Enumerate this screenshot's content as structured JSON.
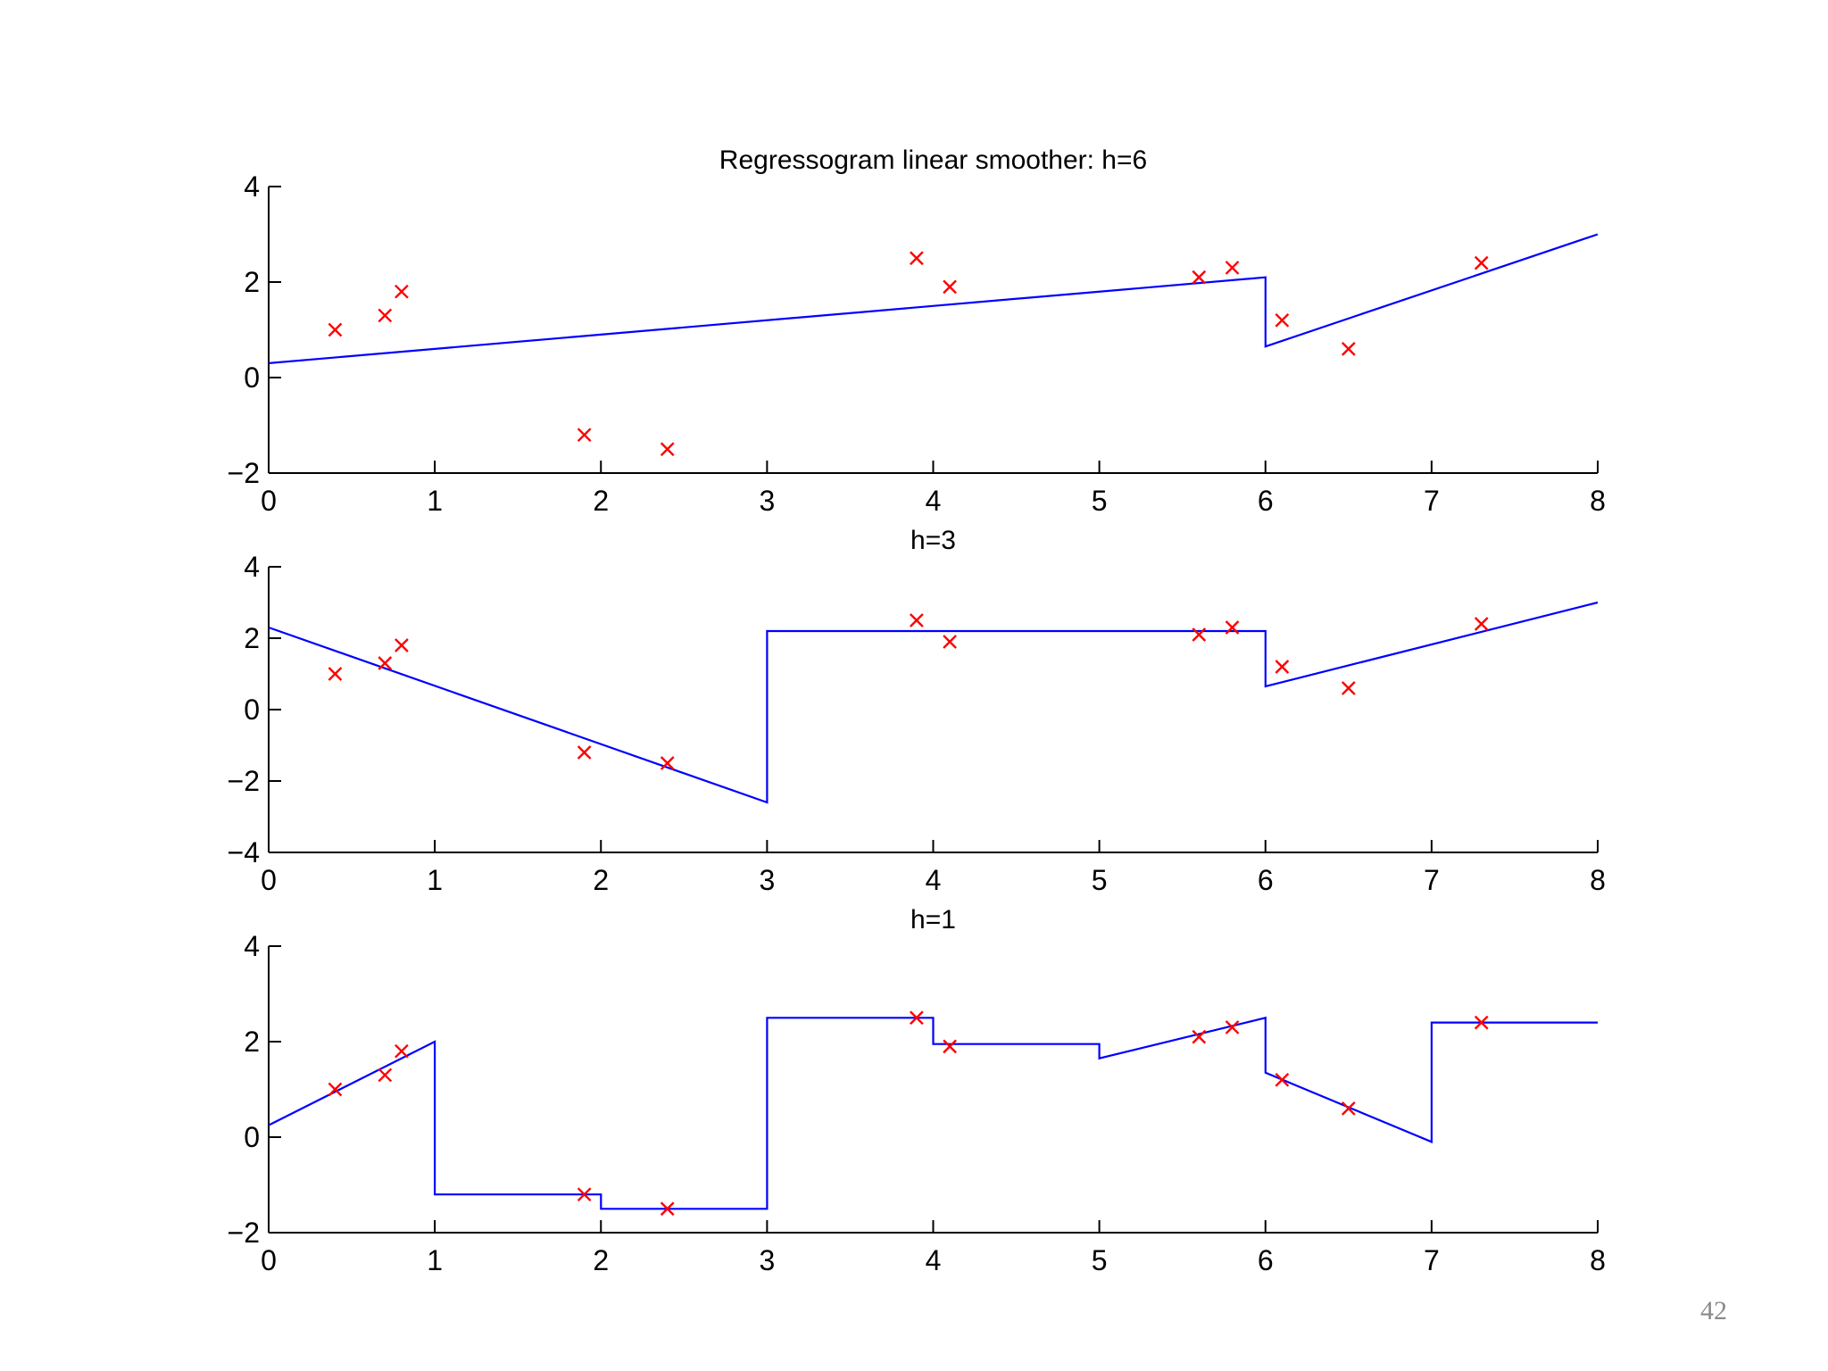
{
  "page_number": "42",
  "colors": {
    "smoother_line": "#0000ff",
    "data_markers": "#ff0000",
    "axes": "#000000"
  },
  "chart_data": [
    {
      "type": "line",
      "title": "Regressogram linear smoother: h=6",
      "xlim": [
        0,
        8
      ],
      "ylim": [
        -2,
        4
      ],
      "xticks": [
        0,
        1,
        2,
        3,
        4,
        5,
        6,
        7,
        8
      ],
      "yticks": [
        -2,
        0,
        2,
        4
      ],
      "grid": false,
      "points": {
        "x": [
          0.4,
          0.7,
          0.8,
          1.9,
          2.4,
          3.9,
          4.1,
          5.6,
          5.8,
          6.1,
          6.5,
          7.3
        ],
        "y": [
          1.0,
          1.3,
          1.8,
          -1.2,
          -1.5,
          2.5,
          1.9,
          2.1,
          2.3,
          1.2,
          0.6,
          2.4
        ]
      },
      "smoother": {
        "x": [
          0,
          6,
          6,
          8
        ],
        "y": [
          0.3,
          2.1,
          0.65,
          3.0
        ]
      }
    },
    {
      "type": "line",
      "title": "h=3",
      "xlim": [
        0,
        8
      ],
      "ylim": [
        -4,
        4
      ],
      "xticks": [
        0,
        1,
        2,
        3,
        4,
        5,
        6,
        7,
        8
      ],
      "yticks": [
        -4,
        -2,
        0,
        2,
        4
      ],
      "grid": false,
      "points": {
        "x": [
          0.4,
          0.7,
          0.8,
          1.9,
          2.4,
          3.9,
          4.1,
          5.6,
          5.8,
          6.1,
          6.5,
          7.3
        ],
        "y": [
          1.0,
          1.3,
          1.8,
          -1.2,
          -1.5,
          2.5,
          1.9,
          2.1,
          2.3,
          1.2,
          0.6,
          2.4
        ]
      },
      "smoother": {
        "x": [
          0,
          3,
          3,
          6,
          6,
          8
        ],
        "y": [
          2.3,
          -2.6,
          2.2,
          2.2,
          0.65,
          3.0
        ]
      }
    },
    {
      "type": "line",
      "title": "h=1",
      "xlim": [
        0,
        8
      ],
      "ylim": [
        -2,
        4
      ],
      "xticks": [
        0,
        1,
        2,
        3,
        4,
        5,
        6,
        7,
        8
      ],
      "yticks": [
        -2,
        0,
        2,
        4
      ],
      "grid": false,
      "points": {
        "x": [
          0.4,
          0.7,
          0.8,
          1.9,
          2.4,
          3.9,
          4.1,
          5.6,
          5.8,
          6.1,
          6.5,
          7.3
        ],
        "y": [
          1.0,
          1.3,
          1.8,
          -1.2,
          -1.5,
          2.5,
          1.9,
          2.1,
          2.3,
          1.2,
          0.6,
          2.4
        ]
      },
      "smoother": {
        "x": [
          0,
          1,
          1,
          2,
          2,
          3,
          3,
          4,
          4,
          5,
          5,
          6,
          6,
          7,
          7,
          8
        ],
        "y": [
          0.25,
          2.0,
          -1.2,
          -1.2,
          -1.5,
          -1.5,
          2.5,
          2.5,
          1.95,
          1.95,
          1.65,
          2.5,
          1.35,
          -0.1,
          2.4,
          2.4
        ]
      }
    }
  ]
}
